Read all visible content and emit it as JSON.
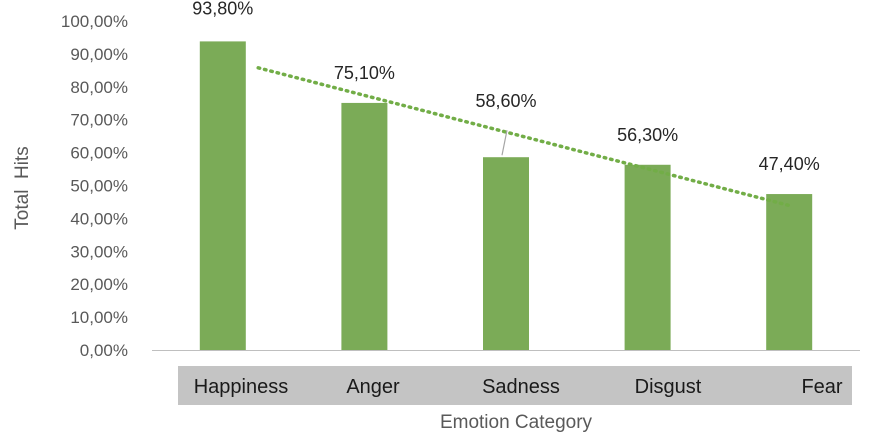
{
  "chart_data": {
    "type": "bar",
    "categories": [
      "Happiness",
      "Anger",
      "Sadness",
      "Disgust",
      "Fear"
    ],
    "values": [
      93.8,
      75.1,
      58.6,
      56.3,
      47.4
    ],
    "data_labels": [
      "93,80%",
      "75,10%",
      "58,60%",
      "56,30%",
      "47,40%"
    ],
    "xlabel": "Emotion Category",
    "ylabel": "Total  Hits",
    "ylim": [
      0,
      100
    ],
    "yticks": [
      "0,00%",
      "10,00%",
      "20,00%",
      "30,00%",
      "40,00%",
      "50,00%",
      "60,00%",
      "70,00%",
      "80,00%",
      "90,00%",
      "100,00%"
    ],
    "grid": false,
    "trendline": {
      "type": "linear",
      "style": "dotted"
    },
    "colors": {
      "bar": "#7bab57",
      "trendline": "#72ad47",
      "category_band": "#c4c4c4",
      "axis": "#bfbfbf"
    }
  }
}
